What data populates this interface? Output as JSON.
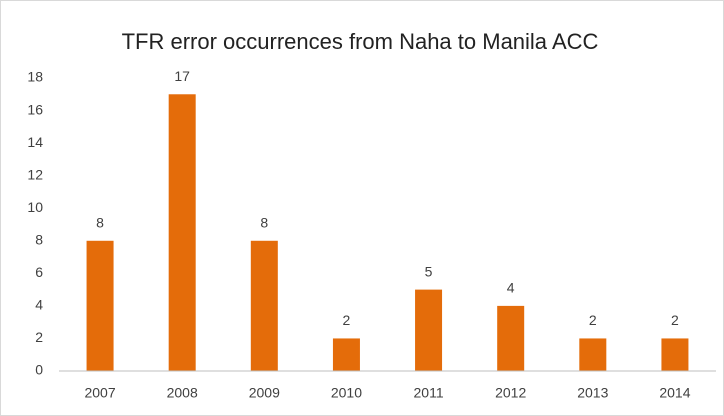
{
  "chart_data": {
    "type": "bar",
    "title": "TFR error occurrences from Naha to Manila ACC",
    "categories": [
      "2007",
      "2008",
      "2009",
      "2010",
      "2011",
      "2012",
      "2013",
      "2014"
    ],
    "values": [
      8,
      17,
      8,
      2,
      5,
      4,
      2,
      2
    ],
    "color": "#e46c0a",
    "ylim": [
      0,
      18
    ],
    "yticks": [
      0,
      2,
      4,
      6,
      8,
      10,
      12,
      14,
      16,
      18
    ],
    "grid": false
  }
}
